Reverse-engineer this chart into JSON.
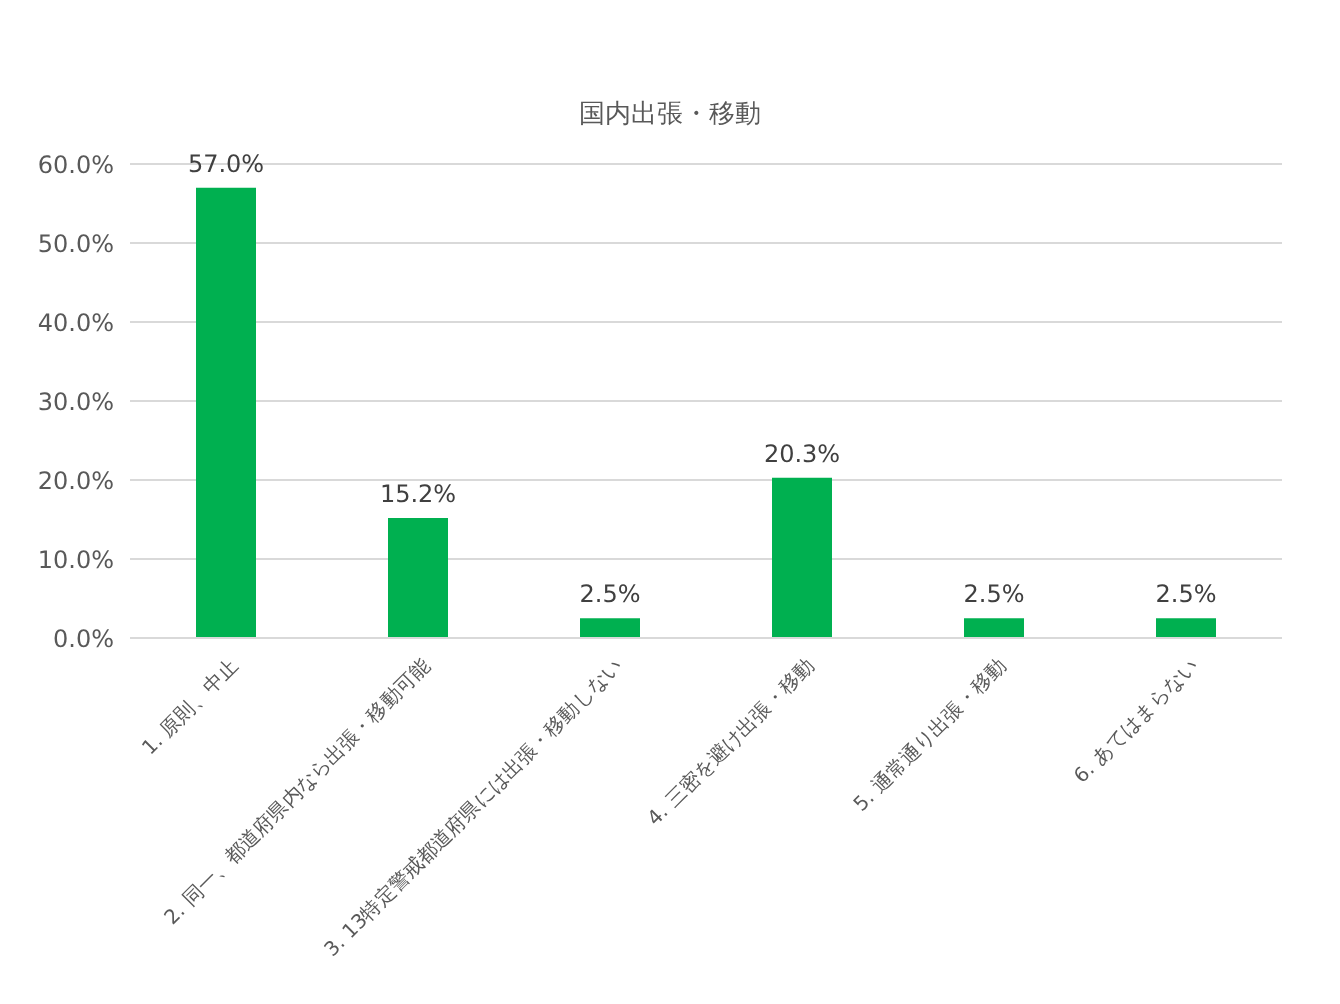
{
  "chart_data": {
    "type": "bar",
    "title": "国内出張・移動",
    "categories": [
      "1. 原則、中止",
      "2. 同一、都道府県内なら出張・移動可能",
      "3. 13特定警戒都道府県には出張・移動しない",
      "4. 三密を避け出張・移動",
      "5. 通常通り出張・移動",
      "6. あてはまらない"
    ],
    "values": [
      57.0,
      15.2,
      2.5,
      20.3,
      2.5,
      2.5
    ],
    "value_labels": [
      "57.0%",
      "15.2%",
      "2.5%",
      "20.3%",
      "2.5%",
      "2.5%"
    ],
    "color": "#00b050",
    "ylim": [
      0,
      60
    ],
    "yticks": [
      {
        "value": 0,
        "label": "0.0%"
      },
      {
        "value": 10,
        "label": "10.0%"
      },
      {
        "value": 20,
        "label": "20.0%"
      },
      {
        "value": 30,
        "label": "30.0%"
      },
      {
        "value": 40,
        "label": "40.0%"
      },
      {
        "value": 50,
        "label": "50.0%"
      },
      {
        "value": 60,
        "label": "60.0%"
      }
    ],
    "grid": "y",
    "legend": false
  }
}
